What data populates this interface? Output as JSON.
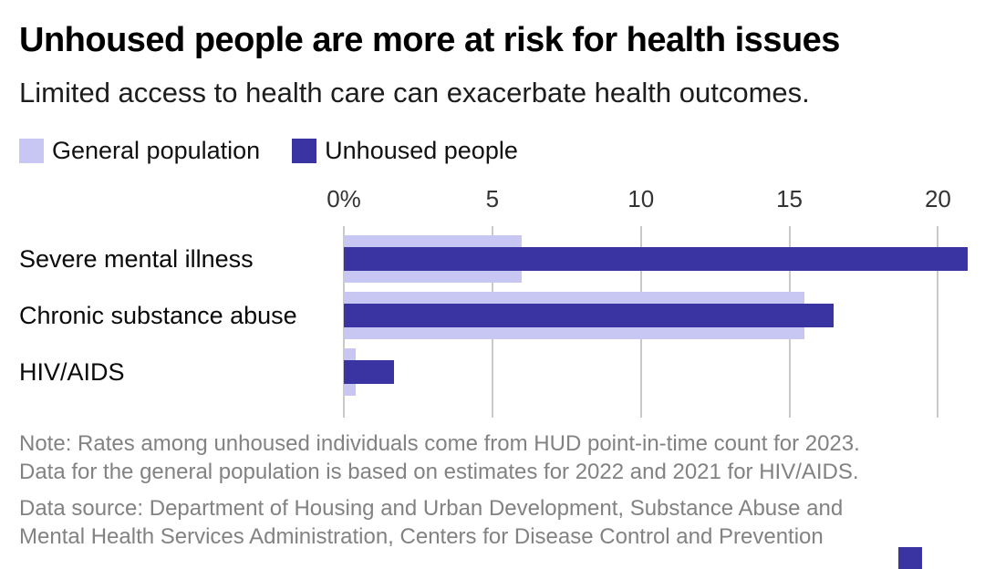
{
  "header": {
    "title": "Unhoused people are more at risk for health issues",
    "subtitle": "Limited access to health care can exacerbate health outcomes."
  },
  "legend": {
    "items": [
      {
        "label": "General population",
        "color": "#c8c6f2"
      },
      {
        "label": "Unhoused people",
        "color": "#3a34a3"
      }
    ]
  },
  "chart_data": {
    "type": "bar",
    "orientation": "horizontal",
    "title": "Unhoused people are more at risk for health issues",
    "subtitle": "Limited access to health care can exacerbate health outcomes.",
    "categories": [
      "Severe mental illness",
      "Chronic substance abuse",
      "HIV/AIDS"
    ],
    "series": [
      {
        "name": "General population",
        "color": "#c8c6f2",
        "values": [
          6,
          15.5,
          0.4
        ]
      },
      {
        "name": "Unhoused people",
        "color": "#3a34a3",
        "values": [
          21,
          16.5,
          1.7
        ]
      }
    ],
    "unit": "%",
    "x_axis": {
      "min": 0,
      "max": 21,
      "ticks": [
        {
          "value": 0,
          "label": "0%"
        },
        {
          "value": 5,
          "label": "5"
        },
        {
          "value": 10,
          "label": "10"
        },
        {
          "value": 15,
          "label": "15"
        },
        {
          "value": 20,
          "label": "20"
        }
      ]
    },
    "grid": true,
    "gridline_color": "#c9c9c9",
    "legend_position": "top"
  },
  "notes": {
    "note_lines": [
      "Note: Rates among unhoused individuals come from HUD point-in-time count for 2023.",
      "Data for the general population is based on estimates for 2022 and 2021 for HIV/AIDS."
    ],
    "source_lines": [
      "Data source: Department of Housing and Urban Development, Substance Abuse and",
      "Mental Health Services Administration, Centers for Disease Control and Prevention"
    ]
  },
  "brand_color": "#3a34a3"
}
